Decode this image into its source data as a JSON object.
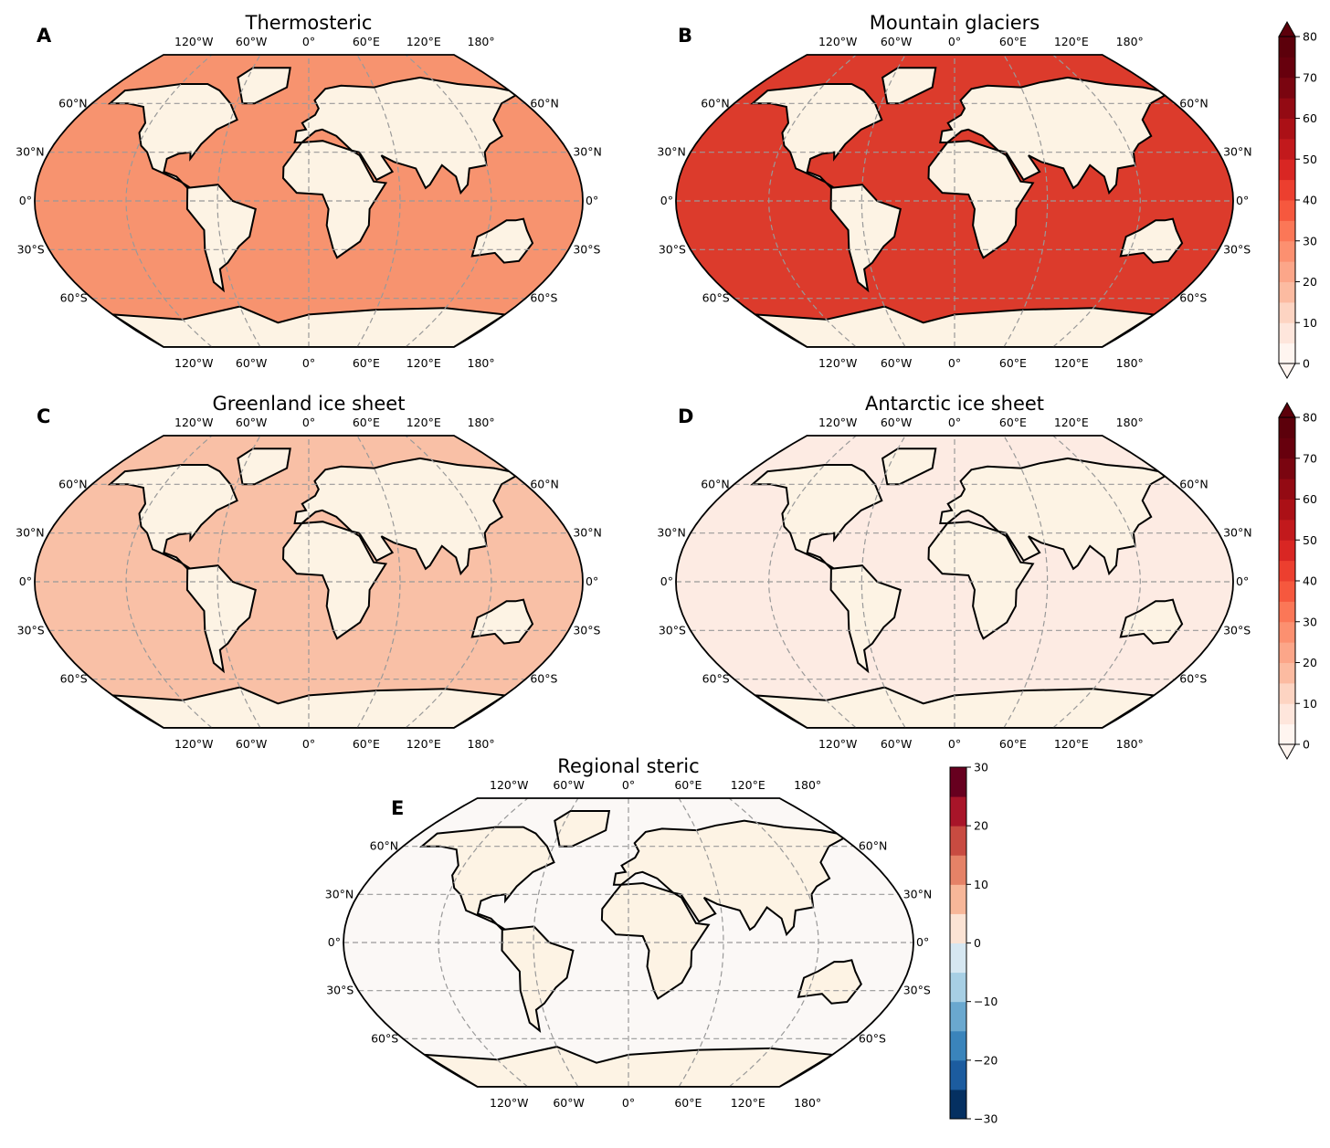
{
  "panels": [
    {
      "letter": "A",
      "title": "Thermosteric",
      "ocean_color": "#f7936f"
    },
    {
      "letter": "B",
      "title": "Mountain glaciers",
      "ocean_color": "#dc3b2c"
    },
    {
      "letter": "C",
      "title": "Greenland ice sheet",
      "ocean_color": "#f9c0a6"
    },
    {
      "letter": "D",
      "title": "Antarctic ice sheet",
      "ocean_color": "#fdebe3"
    },
    {
      "letter": "E",
      "title": "Regional steric",
      "ocean_color": "#fbf8f6"
    }
  ],
  "land_color": "#fdf3e4",
  "graticule": {
    "lon_labels": [
      "120°W",
      "60°W",
      "0°",
      "60°E",
      "120°E",
      "180°"
    ],
    "lat_labels": [
      "60°N",
      "30°N",
      "0°",
      "30°S",
      "60°S"
    ]
  },
  "colorbars": [
    {
      "lim": [
        0,
        80
      ],
      "ticks": [
        0,
        10,
        20,
        30,
        40,
        50,
        60,
        70,
        80
      ],
      "extend": true,
      "colors": [
        "#fff5f0",
        "#fee6dc",
        "#fdd4c2",
        "#fcbba1",
        "#fca689",
        "#fc9070",
        "#fb7757",
        "#f6583e",
        "#ec3f2f",
        "#d92623",
        "#c2191c",
        "#ab1016",
        "#930a13",
        "#7a0510",
        "#67000d",
        "#5c000b"
      ]
    },
    {
      "lim": [
        0,
        80
      ],
      "ticks": [
        0,
        10,
        20,
        30,
        40,
        50,
        60,
        70,
        80
      ],
      "extend": true,
      "colors": [
        "#fff5f0",
        "#fee6dc",
        "#fdd4c2",
        "#fcbba1",
        "#fca689",
        "#fc9070",
        "#fb7757",
        "#f6583e",
        "#ec3f2f",
        "#d92623",
        "#c2191c",
        "#ab1016",
        "#930a13",
        "#7a0510",
        "#67000d",
        "#5c000b"
      ]
    },
    {
      "lim": [
        -30,
        30
      ],
      "ticks": [
        {
          "value": -30,
          "label": "−30"
        },
        {
          "value": -20,
          "label": "−20"
        },
        {
          "value": -10,
          "label": "−10"
        },
        0,
        10,
        20,
        30
      ],
      "extend": false,
      "colors": [
        "#053061",
        "#1c5c9f",
        "#3a84bb",
        "#6aa8cf",
        "#a7cfe4",
        "#d6e7f1",
        "#fbe3d4",
        "#f7b799",
        "#e58267",
        "#c84b41",
        "#a81529",
        "#67001f"
      ]
    }
  ]
}
